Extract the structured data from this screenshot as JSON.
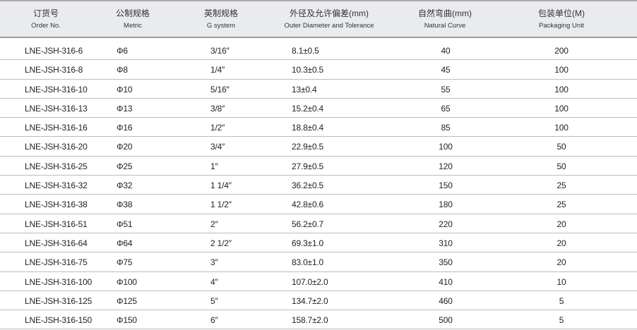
{
  "headers": [
    {
      "zh": "订货号",
      "en": "Order No."
    },
    {
      "zh": "公制规格",
      "en": "Metric"
    },
    {
      "zh": "英制规格",
      "en": "G system"
    },
    {
      "zh": "外径及允许偏差(mm)",
      "en": "Outer Diameter and Tolerance"
    },
    {
      "zh": "自然弯曲(mm)",
      "en": "Natural Curve"
    },
    {
      "zh": "包装单位(M)",
      "en": "Packaging Unit"
    }
  ],
  "rows": [
    [
      "LNE-JSH-316-6",
      "Φ6",
      "3/16″",
      "8.1±0.5",
      "40",
      "200"
    ],
    [
      "LNE-JSH-316-8",
      "Φ8",
      "1/4″",
      "10.3±0.5",
      "45",
      "100"
    ],
    [
      "LNE-JSH-316-10",
      "Φ10",
      "5/16″",
      "13±0.4",
      "55",
      "100"
    ],
    [
      "LNE-JSH-316-13",
      "Φ13",
      "3/8″",
      "15.2±0.4",
      "65",
      "100"
    ],
    [
      "LNE-JSH-316-16",
      "Φ16",
      "1/2″",
      "18.8±0.4",
      "85",
      "100"
    ],
    [
      "LNE-JSH-316-20",
      "Φ20",
      "3/4″",
      "22.9±0.5",
      "100",
      "50"
    ],
    [
      "LNE-JSH-316-25",
      "Φ25",
      "1″",
      "27.9±0.5",
      "120",
      "50"
    ],
    [
      "LNE-JSH-316-32",
      "Φ32",
      "1 1/4″",
      "36.2±0.5",
      "150",
      "25"
    ],
    [
      "LNE-JSH-316-38",
      "Φ38",
      "1 1/2″",
      "42.8±0.6",
      "180",
      "25"
    ],
    [
      "LNE-JSH-316-51",
      "Φ51",
      "2″",
      "56.2±0.7",
      "220",
      "20"
    ],
    [
      "LNE-JSH-316-64",
      "Φ64",
      "2 1/2″",
      "69.3±1.0",
      "310",
      "20"
    ],
    [
      "LNE-JSH-316-75",
      "Φ75",
      "3″",
      "83.0±1.0",
      "350",
      "20"
    ],
    [
      "LNE-JSH-316-100",
      "Φ100",
      "4″",
      "107.0±2.0",
      "410",
      "10"
    ],
    [
      "LNE-JSH-316-125",
      "Φ125",
      "5″",
      "134.7±2.0",
      "460",
      "5"
    ],
    [
      "LNE-JSH-316-150",
      "Φ150",
      "6″",
      "158.7±2.0",
      "500",
      "5"
    ]
  ]
}
